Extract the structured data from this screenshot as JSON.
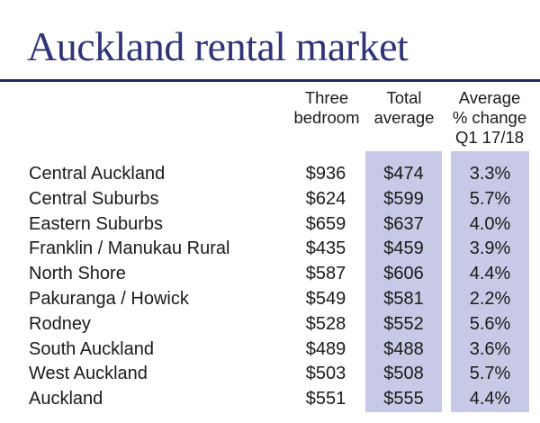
{
  "title": "Auckland rental market",
  "headers": {
    "three_bedroom": [
      "Three",
      "bedroom"
    ],
    "total_average": [
      "Total",
      "average"
    ],
    "average_change": [
      "Average",
      "% change",
      "Q1 17/18"
    ]
  },
  "colors": {
    "title": "#2f3478",
    "rule": "#232a5e",
    "highlight_band": "#c8c9e6",
    "text": "#1a1a1a"
  },
  "chart_data": {
    "type": "table",
    "title": "Auckland rental market",
    "columns": [
      "",
      "Three bedroom",
      "Total average",
      "Average % change Q1 17/18"
    ],
    "rows": [
      {
        "area": "Central Auckland",
        "three_bedroom": "$936",
        "total_average": "$474",
        "change": "3.3%"
      },
      {
        "area": "Central Suburbs",
        "three_bedroom": "$624",
        "total_average": "$599",
        "change": "5.7%"
      },
      {
        "area": "Eastern Suburbs",
        "three_bedroom": "$659",
        "total_average": "$637",
        "change": "4.0%"
      },
      {
        "area": "Franklin / Manukau Rural",
        "three_bedroom": "$435",
        "total_average": "$459",
        "change": "3.9%"
      },
      {
        "area": "North Shore",
        "three_bedroom": "$587",
        "total_average": "$606",
        "change": "4.4%"
      },
      {
        "area": "Pakuranga / Howick",
        "three_bedroom": "$549",
        "total_average": "$581",
        "change": "2.2%"
      },
      {
        "area": "Rodney",
        "three_bedroom": "$528",
        "total_average": "$552",
        "change": "5.6%"
      },
      {
        "area": "South Auckland",
        "three_bedroom": "$489",
        "total_average": "$488",
        "change": "3.6%"
      },
      {
        "area": "West Auckland",
        "three_bedroom": "$503",
        "total_average": "$508",
        "change": "5.7%"
      },
      {
        "area": "Auckland",
        "three_bedroom": "$551",
        "total_average": "$555",
        "change": "4.4%"
      }
    ]
  }
}
